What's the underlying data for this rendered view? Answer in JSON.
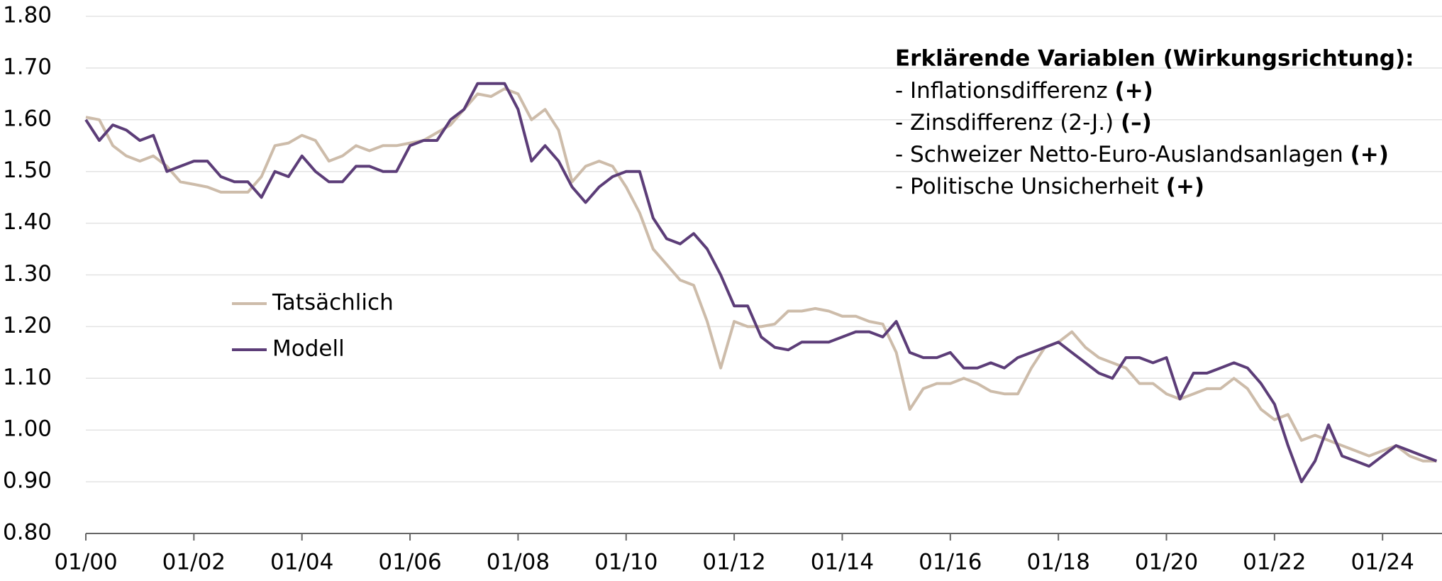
{
  "chart_data": {
    "type": "line",
    "x": [
      2000,
      2000.25,
      2000.5,
      2000.75,
      2001,
      2001.25,
      2001.5,
      2001.75,
      2002,
      2002.25,
      2002.5,
      2002.75,
      2003,
      2003.25,
      2003.5,
      2003.75,
      2004,
      2004.25,
      2004.5,
      2004.75,
      2005,
      2005.25,
      2005.5,
      2005.75,
      2006,
      2006.25,
      2006.5,
      2006.75,
      2007,
      2007.25,
      2007.5,
      2007.75,
      2008,
      2008.25,
      2008.5,
      2008.75,
      2009,
      2009.25,
      2009.5,
      2009.75,
      2010,
      2010.25,
      2010.5,
      2010.75,
      2011,
      2011.25,
      2011.5,
      2011.75,
      2012,
      2012.25,
      2012.5,
      2012.75,
      2013,
      2013.25,
      2013.5,
      2013.75,
      2014,
      2014.25,
      2014.5,
      2014.75,
      2015,
      2015.25,
      2015.5,
      2015.75,
      2016,
      2016.25,
      2016.5,
      2016.75,
      2017,
      2017.25,
      2017.5,
      2017.75,
      2018,
      2018.25,
      2018.5,
      2018.75,
      2019,
      2019.25,
      2019.5,
      2019.75,
      2020,
      2020.25,
      2020.5,
      2020.75,
      2021,
      2021.25,
      2021.5,
      2021.75,
      2022,
      2022.25,
      2022.5,
      2022.75,
      2023,
      2023.25,
      2023.5,
      2023.75,
      2024,
      2024.25,
      2024.5,
      2024.75,
      2025
    ],
    "series": [
      {
        "name": "Tatsächlich",
        "color": "#cdbcaa",
        "values": [
          1.605,
          1.6,
          1.55,
          1.53,
          1.52,
          1.53,
          1.51,
          1.48,
          1.475,
          1.47,
          1.46,
          1.46,
          1.46,
          1.49,
          1.55,
          1.555,
          1.57,
          1.56,
          1.52,
          1.53,
          1.55,
          1.54,
          1.55,
          1.55,
          1.555,
          1.56,
          1.575,
          1.59,
          1.62,
          1.65,
          1.645,
          1.66,
          1.65,
          1.6,
          1.62,
          1.58,
          1.48,
          1.51,
          1.52,
          1.51,
          1.47,
          1.42,
          1.35,
          1.32,
          1.29,
          1.28,
          1.21,
          1.12,
          1.21,
          1.2,
          1.2,
          1.205,
          1.23,
          1.23,
          1.235,
          1.23,
          1.22,
          1.22,
          1.21,
          1.205,
          1.15,
          1.04,
          1.08,
          1.09,
          1.09,
          1.1,
          1.09,
          1.075,
          1.07,
          1.07,
          1.12,
          1.16,
          1.17,
          1.19,
          1.16,
          1.14,
          1.13,
          1.12,
          1.09,
          1.09,
          1.07,
          1.06,
          1.07,
          1.08,
          1.08,
          1.1,
          1.08,
          1.04,
          1.02,
          1.03,
          0.98,
          0.99,
          0.98,
          0.97,
          0.96,
          0.95,
          0.96,
          0.97,
          0.95,
          0.94,
          0.94
        ]
      },
      {
        "name": "Modell",
        "color": "#5c3d78",
        "values": [
          1.6,
          1.56,
          1.59,
          1.58,
          1.56,
          1.57,
          1.5,
          1.51,
          1.52,
          1.52,
          1.49,
          1.48,
          1.48,
          1.45,
          1.5,
          1.49,
          1.53,
          1.5,
          1.48,
          1.48,
          1.51,
          1.51,
          1.5,
          1.5,
          1.55,
          1.56,
          1.56,
          1.6,
          1.62,
          1.67,
          1.67,
          1.67,
          1.62,
          1.52,
          1.55,
          1.52,
          1.47,
          1.44,
          1.47,
          1.49,
          1.5,
          1.5,
          1.41,
          1.37,
          1.36,
          1.38,
          1.35,
          1.3,
          1.24,
          1.24,
          1.18,
          1.16,
          1.155,
          1.17,
          1.17,
          1.17,
          1.18,
          1.19,
          1.19,
          1.18,
          1.21,
          1.15,
          1.14,
          1.14,
          1.15,
          1.12,
          1.12,
          1.13,
          1.12,
          1.14,
          1.15,
          1.16,
          1.17,
          1.15,
          1.13,
          1.11,
          1.1,
          1.14,
          1.14,
          1.13,
          1.14,
          1.06,
          1.11,
          1.11,
          1.12,
          1.13,
          1.12,
          1.09,
          1.05,
          0.97,
          0.9,
          0.94,
          1.01,
          0.95,
          0.94,
          0.93,
          0.95,
          0.97,
          0.96,
          0.95,
          0.94
        ]
      }
    ],
    "xlim": [
      2000,
      2025.1
    ],
    "xticks": [
      {
        "value": 2000,
        "label": "01/00"
      },
      {
        "value": 2002,
        "label": "01/02"
      },
      {
        "value": 2004,
        "label": "01/04"
      },
      {
        "value": 2006,
        "label": "01/06"
      },
      {
        "value": 2008,
        "label": "01/08"
      },
      {
        "value": 2010,
        "label": "01/10"
      },
      {
        "value": 2012,
        "label": "01/12"
      },
      {
        "value": 2014,
        "label": "01/14"
      },
      {
        "value": 2016,
        "label": "01/16"
      },
      {
        "value": 2018,
        "label": "01/18"
      },
      {
        "value": 2020,
        "label": "01/20"
      },
      {
        "value": 2022,
        "label": "01/22"
      },
      {
        "value": 2024,
        "label": "01/24"
      }
    ],
    "ylim": [
      0.8,
      1.8
    ],
    "yticks": [
      {
        "value": 0.8,
        "label": "0.80"
      },
      {
        "value": 0.9,
        "label": "0.90"
      },
      {
        "value": 1.0,
        "label": "1.00"
      },
      {
        "value": 1.1,
        "label": "1.10"
      },
      {
        "value": 1.2,
        "label": "1.20"
      },
      {
        "value": 1.3,
        "label": "1.30"
      },
      {
        "value": 1.4,
        "label": "1.40"
      },
      {
        "value": 1.5,
        "label": "1.50"
      },
      {
        "value": 1.6,
        "label": "1.60"
      },
      {
        "value": 1.7,
        "label": "1.70"
      },
      {
        "value": 1.8,
        "label": "1.80"
      }
    ],
    "grid": true,
    "annotation": {
      "title": "Erklärende Variablen (Wirkungsrichtung):",
      "items": [
        {
          "text": "- Inflationsdifferenz",
          "sign": "(+)"
        },
        {
          "text": "- Zinsdifferenz (2-J.)",
          "sign": "(–)"
        },
        {
          "text": "- Schweizer Netto-Euro-Auslandsanlagen",
          "sign": "(+)"
        },
        {
          "text": "- Politische Unsicherheit",
          "sign": "(+)"
        }
      ]
    }
  }
}
